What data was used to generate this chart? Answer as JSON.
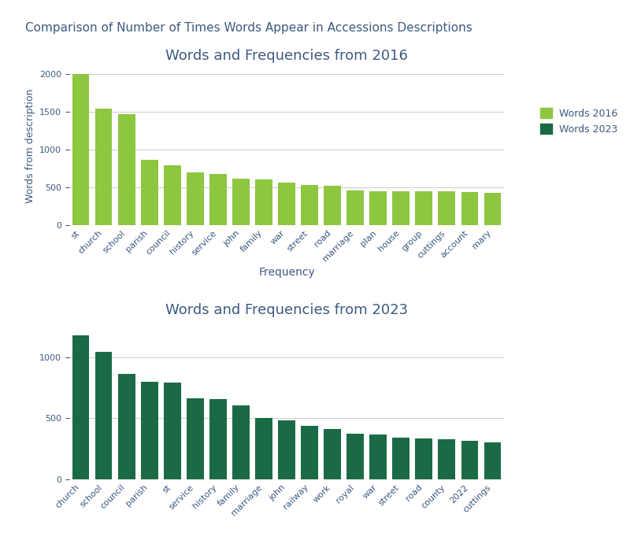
{
  "main_title": "Comparison of Number of Times Words Appear in Accessions Descriptions",
  "chart1_title": "Words and Frequencies from 2016",
  "chart2_title": "Words and Frequencies from 2023",
  "xlabel": "Frequency",
  "ylabel": "Words from description",
  "words_2016": [
    "st",
    "church",
    "school",
    "parish",
    "council",
    "history",
    "service",
    "john",
    "family",
    "war",
    "street",
    "road",
    "marriage",
    "plan",
    "house",
    "group",
    "cuttings",
    "account",
    "mary"
  ],
  "values_2016": [
    2000,
    1540,
    1470,
    860,
    790,
    700,
    680,
    610,
    600,
    560,
    530,
    520,
    460,
    450,
    450,
    450,
    445,
    440,
    430
  ],
  "words_2023": [
    "church",
    "school",
    "council",
    "parish",
    "st",
    "service",
    "history",
    "family",
    "marriage",
    "john",
    "railway",
    "work",
    "royal",
    "war",
    "street",
    "road",
    "county",
    "2022",
    "cuttings"
  ],
  "values_2023": [
    1175,
    1040,
    865,
    800,
    795,
    665,
    655,
    605,
    500,
    485,
    440,
    410,
    375,
    370,
    340,
    335,
    330,
    315,
    305
  ],
  "color_2016": "#8dc63f",
  "color_2023": "#1a6b45",
  "title_color": "#3d5a80",
  "main_title_color": "#3d5a80",
  "background_color": "#ffffff",
  "legend_label_2016": "Words 2016",
  "legend_label_2023": "Words 2023",
  "tick_color": "#3d5a80",
  "grid_color": "#d0d0d0",
  "main_title_fontsize": 11,
  "chart_title_fontsize": 13,
  "tick_fontsize": 8,
  "ylabel_fontsize": 9,
  "xlabel_fontsize": 10
}
